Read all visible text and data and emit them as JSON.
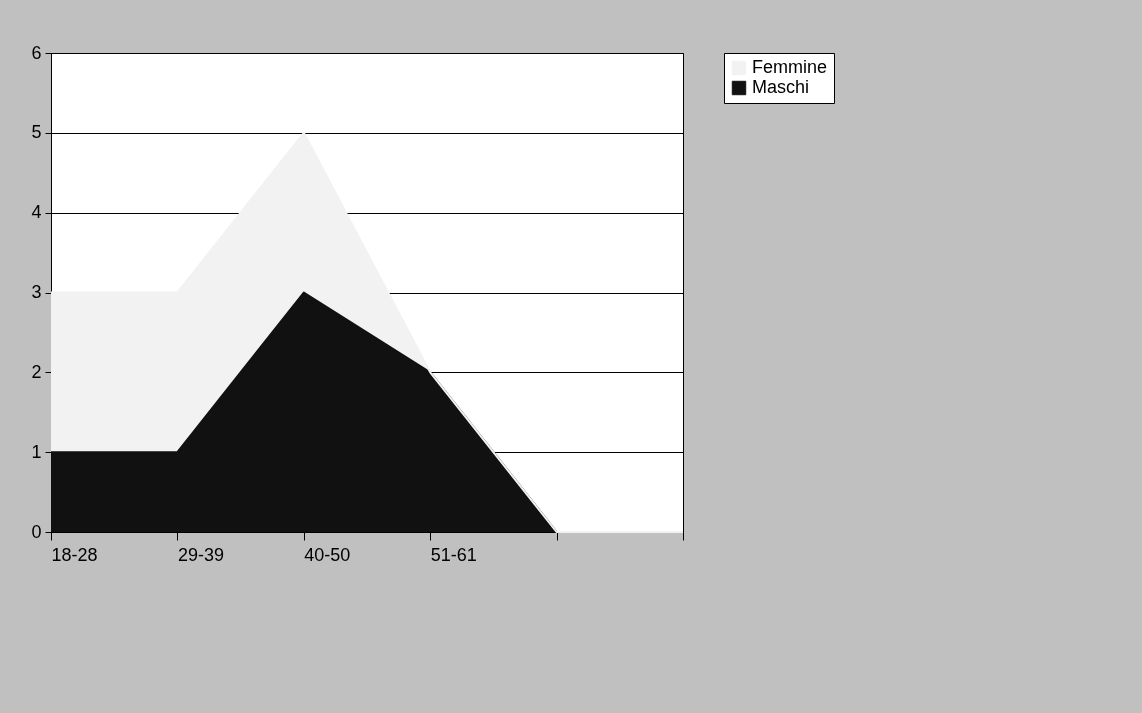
{
  "chart_data": {
    "type": "area",
    "stacked": true,
    "categories": [
      "18-28",
      "29-39",
      "40-50",
      "51-61",
      null,
      null
    ],
    "series": [
      {
        "name": "Maschi",
        "color": "#111111",
        "values": [
          1,
          1,
          3,
          2,
          0,
          0
        ]
      },
      {
        "name": "Femmine",
        "color": "#f2f2f2",
        "values": [
          2,
          2,
          2,
          0,
          0,
          0
        ]
      }
    ],
    "ylim": [
      0,
      6
    ],
    "yticks": [
      0,
      1,
      2,
      3,
      4,
      5,
      6
    ],
    "grid": "y",
    "legend": "right"
  }
}
